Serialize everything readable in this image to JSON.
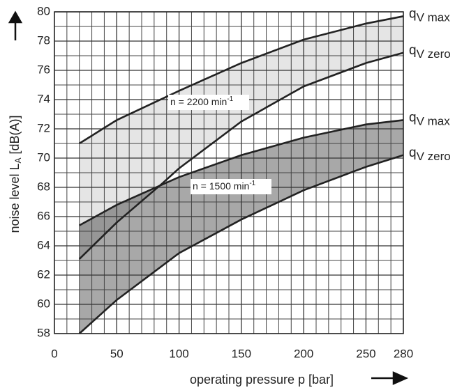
{
  "chart_data": {
    "type": "band-line",
    "xlabel": "operating pressure p [bar]",
    "ylabel": {
      "before": "noise level L",
      "sub": "A",
      "after": " [dB(A)]"
    },
    "xlim": [
      0,
      280
    ],
    "ylim": [
      58,
      80
    ],
    "xticks": [
      0,
      50,
      100,
      150,
      200,
      250,
      280
    ],
    "yticks": [
      58,
      60,
      62,
      64,
      66,
      68,
      70,
      72,
      74,
      76,
      78,
      80
    ],
    "grid": true,
    "minor_grid": {
      "x": 10,
      "y": 1
    },
    "series": [
      {
        "label": [
          "q",
          "V max"
        ],
        "color": "#222222",
        "x": [
          20,
          50,
          100,
          150,
          200,
          250,
          280
        ],
        "values": [
          71.0,
          72.6,
          74.6,
          76.5,
          78.1,
          79.2,
          79.7
        ]
      },
      {
        "label": [
          "q",
          "V zero"
        ],
        "color": "#222222",
        "x": [
          20,
          50,
          87,
          100,
          150,
          200,
          250,
          280
        ],
        "values": [
          63.1,
          65.6,
          68.3,
          69.3,
          72.5,
          74.9,
          76.5,
          77.2
        ]
      },
      {
        "label": [
          "q",
          "V max"
        ],
        "color": "#222222",
        "x": [
          20,
          50,
          100,
          150,
          200,
          250,
          280
        ],
        "values": [
          65.4,
          66.8,
          68.7,
          70.2,
          71.4,
          72.3,
          72.6
        ]
      },
      {
        "label": [
          "q",
          "V zero"
        ],
        "color": "#222222",
        "x": [
          20,
          50,
          100,
          150,
          200,
          250,
          280
        ],
        "values": [
          58.0,
          60.3,
          63.5,
          65.8,
          67.8,
          69.4,
          70.2
        ]
      }
    ],
    "bands": [
      {
        "series": [
          0,
          1
        ],
        "fill": "#000000",
        "opacity": 0.1
      },
      {
        "series": [
          2,
          3
        ],
        "fill": "#000000",
        "opacity": 0.34
      }
    ],
    "annotations": [
      {
        "text": "n = 2200 min",
        "sup": "-1"
      },
      {
        "text": "n = 1500 min",
        "sup": "-1"
      }
    ]
  }
}
